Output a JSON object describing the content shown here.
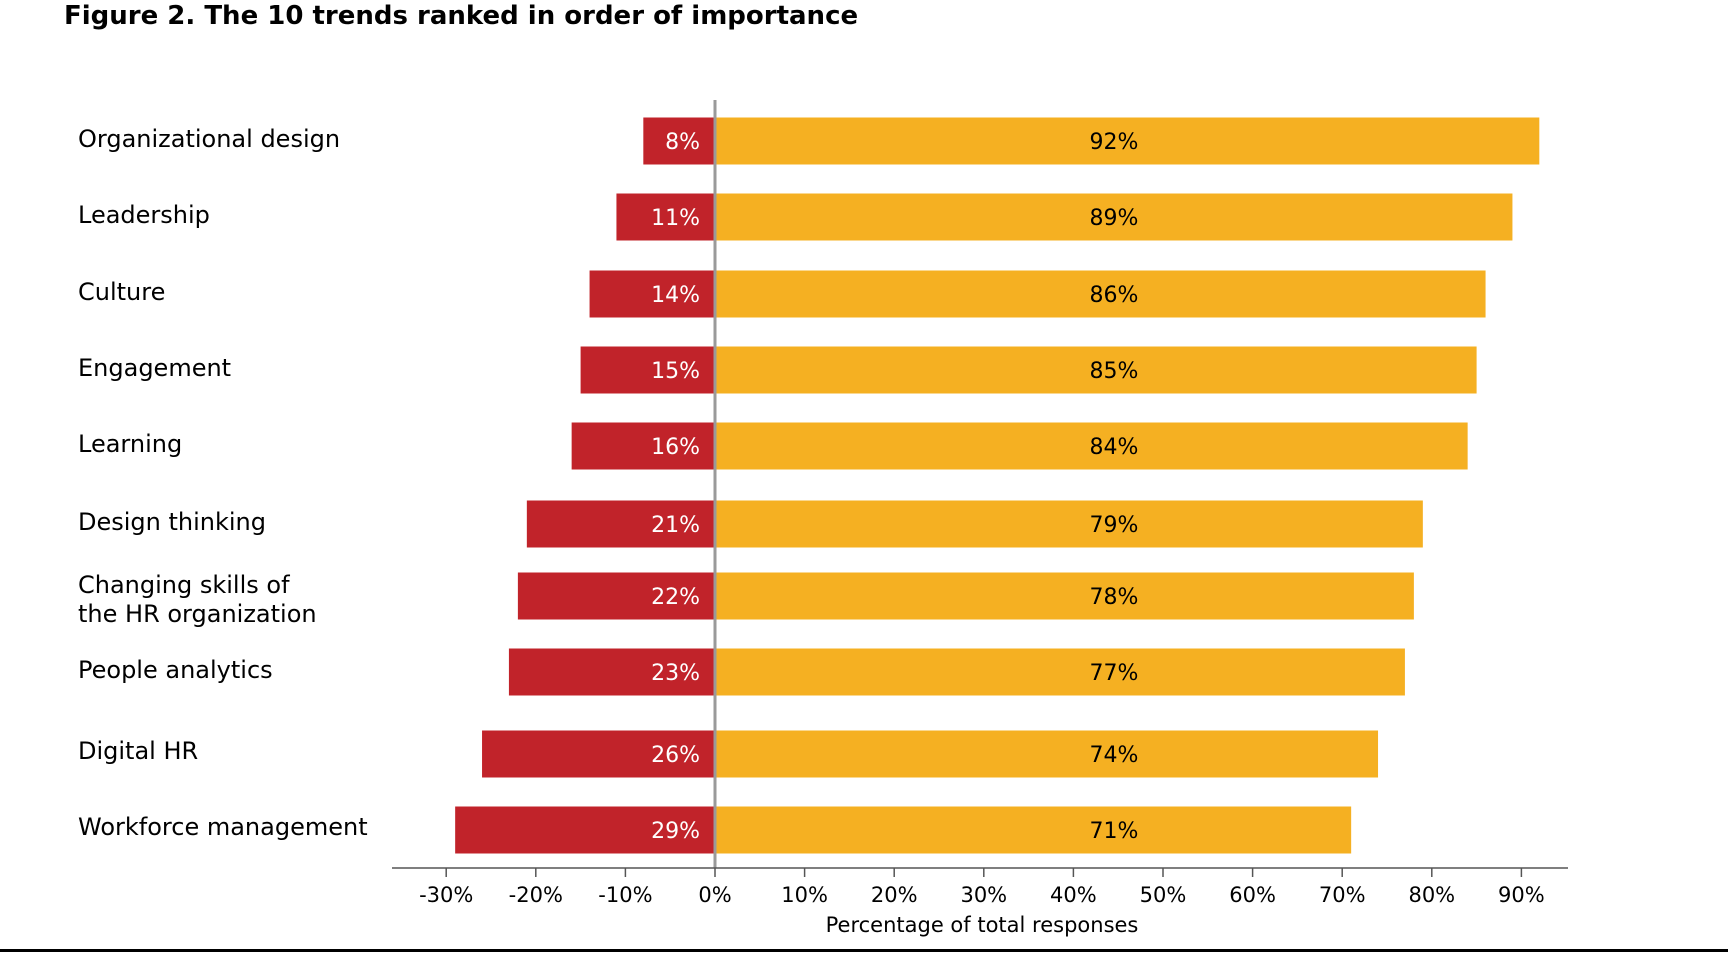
{
  "figure_title": "Figure 2. The 10 trends ranked in order of importance",
  "colors": {
    "negative_bar": "#c1232a",
    "positive_bar": "#f5b022",
    "zero_line": "#9a9a9a",
    "axis": "#555555",
    "negative_label": "#ffffff",
    "positive_label": "#000000"
  },
  "chart_data": {
    "type": "bar",
    "orientation": "horizontal",
    "stacked": "diverging",
    "title": "Figure 2. The 10 trends ranked in order of importance",
    "xlabel": "Percentage of total responses",
    "ylabel": "",
    "xlim": [
      -36,
      95
    ],
    "xticks": [
      -30,
      -20,
      -10,
      0,
      10,
      20,
      30,
      40,
      50,
      60,
      70,
      80,
      90
    ],
    "xtick_labels": [
      "-30%",
      "-20%",
      "-10%",
      "0%",
      "10%",
      "20%",
      "30%",
      "40%",
      "50%",
      "60%",
      "70%",
      "80%",
      "90%"
    ],
    "categories": [
      "Organizational design",
      "Leadership",
      "Culture",
      "Engagement",
      "Learning",
      "Design thinking",
      "Changing skills of\nthe HR organization",
      "People analytics",
      "Digital HR",
      "Workforce management"
    ],
    "series": [
      {
        "name": "Negative",
        "values": [
          -8,
          -11,
          -14,
          -15,
          -16,
          -21,
          -22,
          -23,
          -26,
          -29
        ],
        "labels": [
          "8%",
          "11%",
          "14%",
          "15%",
          "16%",
          "21%",
          "22%",
          "23%",
          "26%",
          "29%"
        ]
      },
      {
        "name": "Positive",
        "values": [
          92,
          89,
          86,
          85,
          84,
          79,
          78,
          77,
          74,
          71
        ],
        "labels": [
          "92%",
          "89%",
          "86%",
          "85%",
          "84%",
          "79%",
          "78%",
          "77%",
          "74%",
          "71%"
        ]
      }
    ],
    "grid": false,
    "legend": "none"
  }
}
